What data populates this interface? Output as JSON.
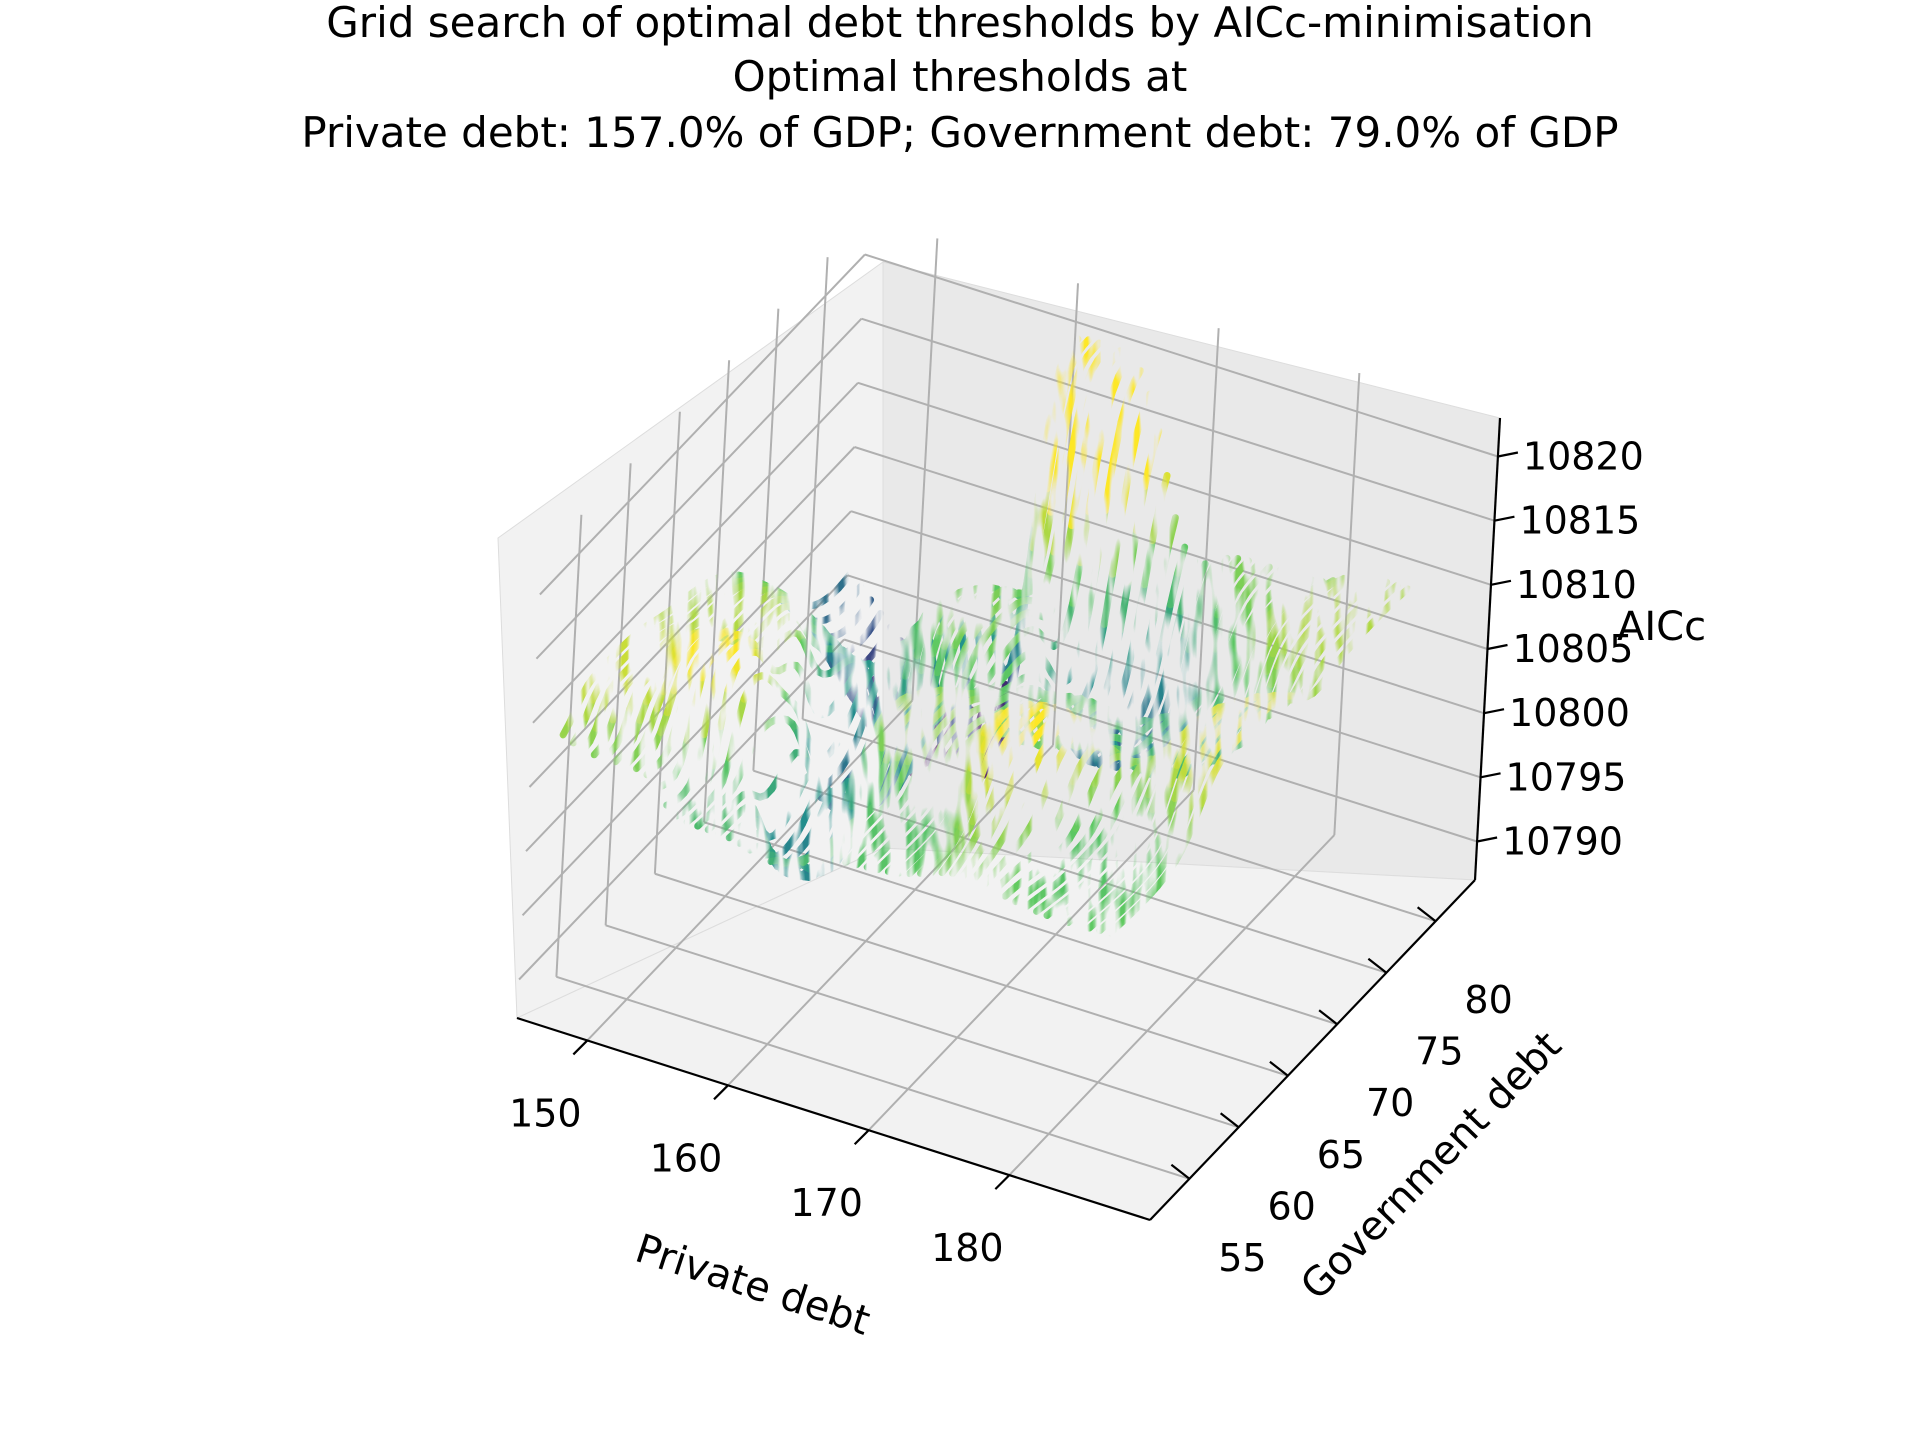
{
  "chart_data": {
    "type": "surface",
    "title_lines": [
      "Grid search of optimal debt thresholds by AICc-minimisation",
      "Optimal thresholds at",
      "Private debt: 157.0% of GDP; Government debt: 79.0% of GDP"
    ],
    "xlabel": "Private debt",
    "ylabel": "Government debt",
    "zlabel": "AICc",
    "x_ticks": [
      "150",
      "160",
      "170",
      "180"
    ],
    "y_ticks": [
      "55",
      "60",
      "65",
      "70",
      "75",
      "80"
    ],
    "z_ticks": [
      "10790",
      "10795",
      "10800",
      "10805",
      "10810",
      "10815",
      "10820"
    ],
    "xlim": [
      145,
      190
    ],
    "ylim": [
      51,
      84
    ],
    "zlim": [
      10787,
      10823
    ],
    "colormap": "viridis",
    "grid": true,
    "optimum": {
      "private_debt": 157.0,
      "government_debt": 79.0
    },
    "surface_sample_points": [
      {
        "x": 148,
        "y": 56,
        "z": 10811
      },
      {
        "x": 150,
        "y": 52,
        "z": 10808
      },
      {
        "x": 152,
        "y": 64,
        "z": 10810
      },
      {
        "x": 153,
        "y": 58,
        "z": 10813
      },
      {
        "x": 156,
        "y": 54,
        "z": 10805
      },
      {
        "x": 157,
        "y": 79,
        "z": 10788
      },
      {
        "x": 158,
        "y": 66,
        "z": 10797
      },
      {
        "x": 160,
        "y": 58,
        "z": 10799
      },
      {
        "x": 162,
        "y": 72,
        "z": 10808
      },
      {
        "x": 163,
        "y": 82,
        "z": 10821
      },
      {
        "x": 165,
        "y": 62,
        "z": 10809
      },
      {
        "x": 168,
        "y": 56,
        "z": 10806
      },
      {
        "x": 170,
        "y": 76,
        "z": 10797
      },
      {
        "x": 172,
        "y": 66,
        "z": 10807
      },
      {
        "x": 174,
        "y": 60,
        "z": 10813
      },
      {
        "x": 176,
        "y": 82,
        "z": 10808
      },
      {
        "x": 178,
        "y": 70,
        "z": 10804
      },
      {
        "x": 180,
        "y": 58,
        "z": 10806
      },
      {
        "x": 183,
        "y": 78,
        "z": 10810
      },
      {
        "x": 185,
        "y": 66,
        "z": 10812
      }
    ]
  }
}
